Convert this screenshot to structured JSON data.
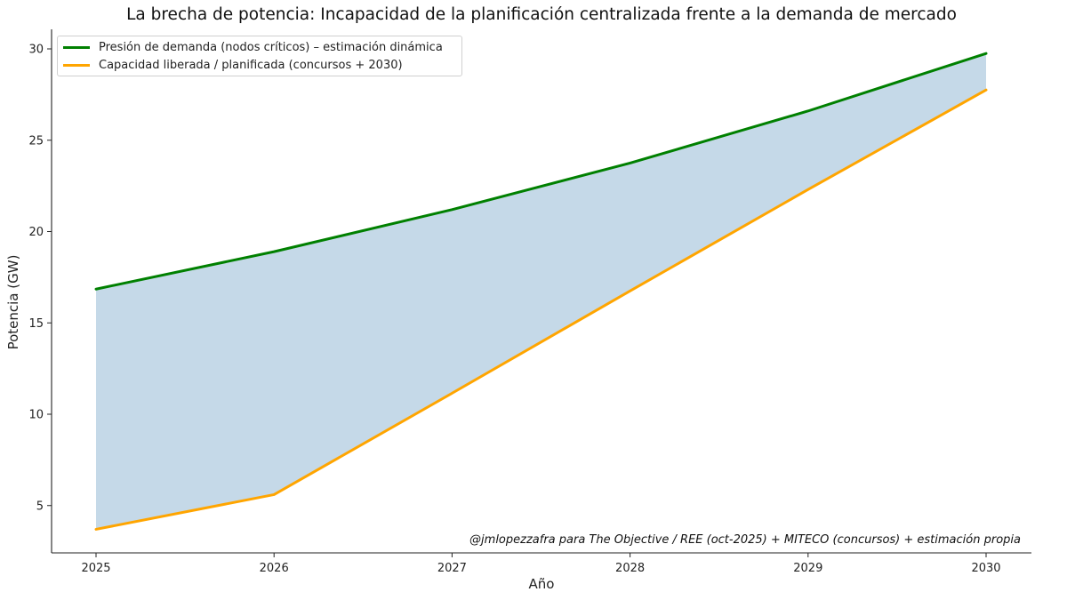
{
  "chart_data": {
    "type": "area",
    "title": "La brecha de potencia: Incapacidad de la planificación centralizada frente a la demanda de mercado",
    "xlabel": "Año",
    "ylabel": "Potencia (GW)",
    "x": [
      2025,
      2026,
      2027,
      2028,
      2029,
      2030
    ],
    "xticks": [
      "2025",
      "2026",
      "2027",
      "2028",
      "2029",
      "2030"
    ],
    "yticks": [
      "5",
      "10",
      "15",
      "20",
      "25",
      "30"
    ],
    "ylim": [
      2.4,
      31.0
    ],
    "xlim": [
      2024.75,
      2030.25
    ],
    "grid": false,
    "legend_position": "upper left",
    "series": [
      {
        "name": "Presión de demanda (nodos críticos) – estimación dinámica",
        "color": "#008000",
        "values": [
          16.85,
          18.9,
          21.2,
          23.75,
          26.6,
          29.75
        ]
      },
      {
        "name": "Capacidad liberada / planificada (concursos + 2030)",
        "color": "#ffa500",
        "values": [
          3.7,
          5.6,
          11.15,
          16.75,
          22.3,
          27.75
        ]
      }
    ],
    "fill_between": {
      "color": "#c5d9e8",
      "between": [
        "Presión de demanda (nodos críticos) – estimación dinámica",
        "Capacidad liberada / planificada (concursos + 2030)"
      ]
    },
    "annotation": "@jmlopezzafra para The Objective / REE (oct-2025) + MITECO (concursos) + estimación propia"
  }
}
